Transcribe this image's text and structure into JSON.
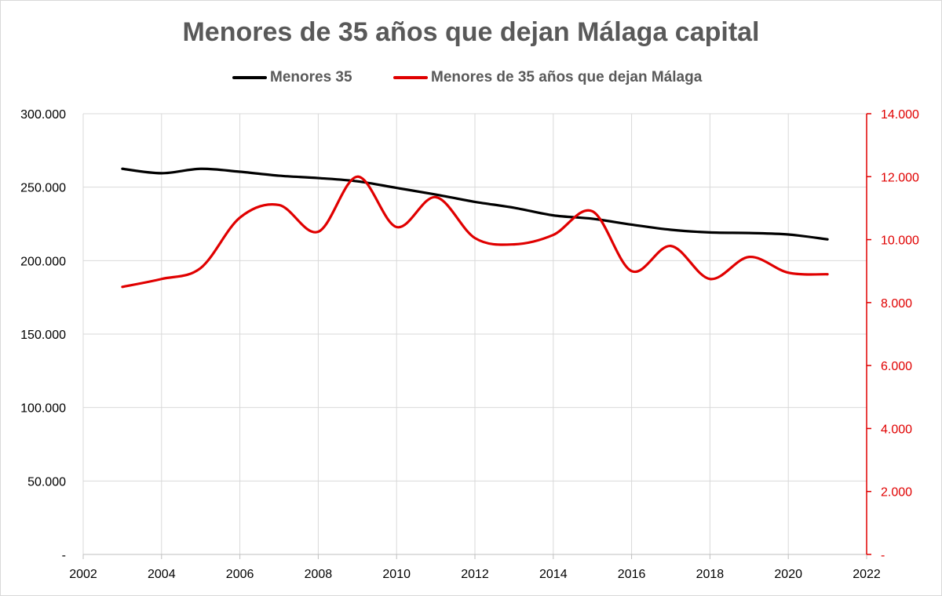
{
  "chart_data": {
    "type": "line",
    "title": "Menores de 35 años que dejan Málaga capital",
    "xlim": [
      2002,
      2022
    ],
    "x_ticks": [
      2002,
      2004,
      2006,
      2008,
      2010,
      2012,
      2014,
      2016,
      2018,
      2020,
      2022
    ],
    "x_tick_labels": [
      "2002",
      "2004",
      "2006",
      "2008",
      "2010",
      "2012",
      "2014",
      "2016",
      "2018",
      "2020",
      "2022"
    ],
    "y_left": {
      "ylim": [
        0,
        300000
      ],
      "ticks": [
        0,
        50000,
        100000,
        150000,
        200000,
        250000,
        300000
      ],
      "tick_labels": [
        "-",
        "50.000",
        "100.000",
        "150.000",
        "200.000",
        "250.000",
        "300.000"
      ],
      "color": "#000000"
    },
    "y_right": {
      "ylim": [
        0,
        14000
      ],
      "ticks": [
        0,
        2000,
        4000,
        6000,
        8000,
        10000,
        12000,
        14000
      ],
      "tick_labels": [
        "-",
        "2.000",
        "4.000",
        "6.000",
        "8.000",
        "10.000",
        "12.000",
        "14.000"
      ],
      "color": "#e00000"
    },
    "grid": true,
    "legend_position": "top",
    "series": [
      {
        "name": "Menores 35",
        "axis": "left",
        "color": "#000000",
        "x": [
          2003,
          2004,
          2005,
          2006,
          2007,
          2008,
          2009,
          2010,
          2011,
          2012,
          2013,
          2014,
          2015,
          2016,
          2017,
          2018,
          2019,
          2020,
          2021
        ],
        "values": [
          262500,
          259500,
          262500,
          260500,
          257800,
          256200,
          254000,
          249500,
          245000,
          240000,
          236000,
          230800,
          228500,
          224500,
          221000,
          219200,
          218800,
          217800,
          214500
        ]
      },
      {
        "name": "Menores de 35 años que dejan Málaga",
        "axis": "right",
        "color": "#e00000",
        "x": [
          2003,
          2004,
          2005,
          2006,
          2007,
          2008,
          2009,
          2010,
          2011,
          2012,
          2013,
          2014,
          2015,
          2016,
          2017,
          2018,
          2019,
          2020,
          2021
        ],
        "values": [
          8500,
          8750,
          9100,
          10700,
          11100,
          10250,
          12000,
          10400,
          11350,
          10050,
          9850,
          10150,
          10900,
          9000,
          9800,
          8750,
          9450,
          8950,
          8900
        ]
      }
    ]
  }
}
